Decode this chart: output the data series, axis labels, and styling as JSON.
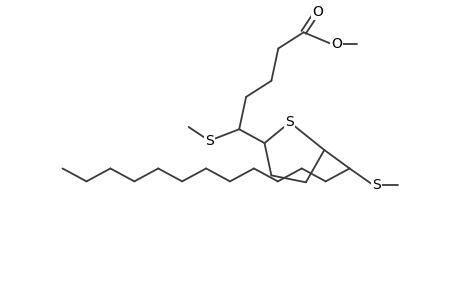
{
  "bg_color": "#ffffff",
  "line_color": "#3a3a3a",
  "line_width": 1.3,
  "font_size": 10,
  "xlim": [
    0,
    10
  ],
  "ylim": [
    0,
    6.5
  ]
}
